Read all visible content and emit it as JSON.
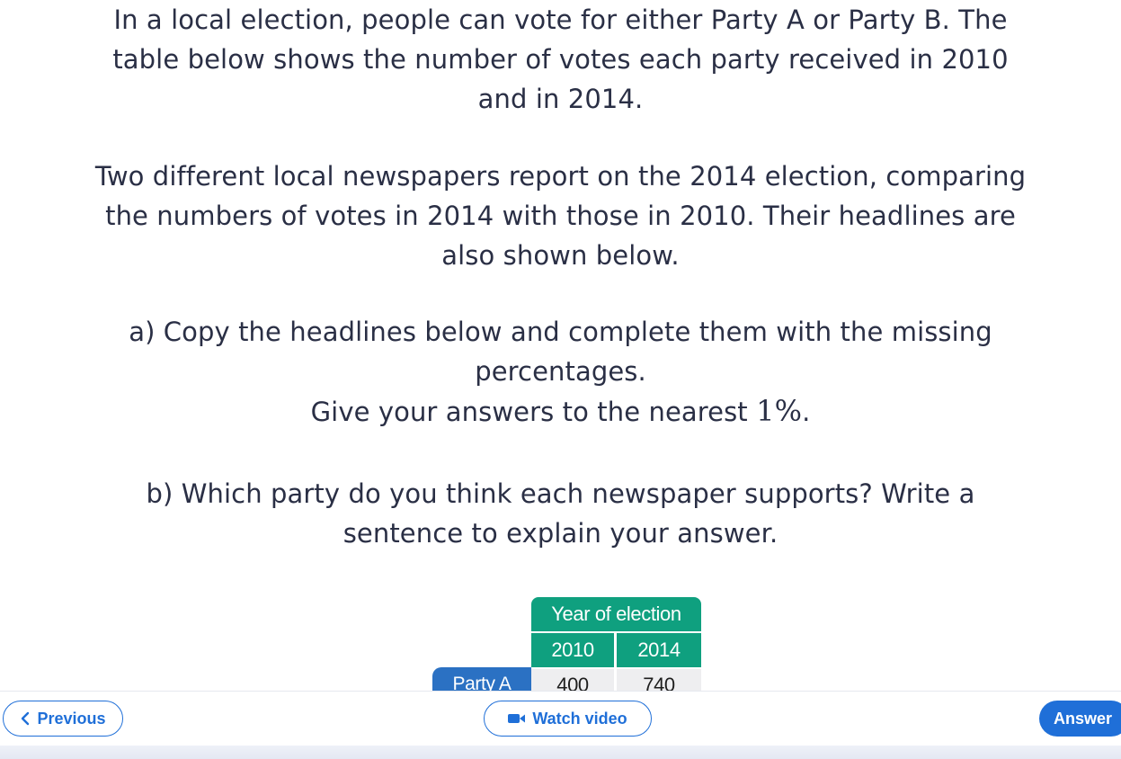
{
  "question": {
    "paragraph1": [
      "In a local election, people can vote for either Party A or Party B. The",
      "table below shows the number of votes each party received in 2010",
      "and in 2014."
    ],
    "paragraph2": [
      "Two different local newspapers report on the 2014 election, comparing",
      "the numbers of votes in 2014 with those in 2010. Their headlines are",
      "also shown below."
    ],
    "part_a": [
      "a) Copy the headlines below and complete them with the missing",
      "percentages."
    ],
    "part_a_instruction": "Give your answers to the nearest ",
    "part_a_math": "1%",
    "part_a_end": ".",
    "part_b": [
      "b) Which party do you think each newspaper supports? Write a",
      "sentence to explain your answer."
    ]
  },
  "table": {
    "header": "Year of election",
    "years": [
      "2010",
      "2014"
    ],
    "rows": [
      {
        "label": "Party A",
        "values": [
          "400",
          "740"
        ]
      }
    ]
  },
  "footer": {
    "previous_label": "Previous",
    "video_label": "Watch video",
    "answer_label": "Answer"
  },
  "colors": {
    "header_green": "#0fa07f",
    "row_label_blue": "#2b71c3",
    "button_blue": "#1f6fd8",
    "text": "#2a2f45"
  },
  "icons": {
    "previous": "chevron-left-icon",
    "video": "video-camera-icon"
  }
}
